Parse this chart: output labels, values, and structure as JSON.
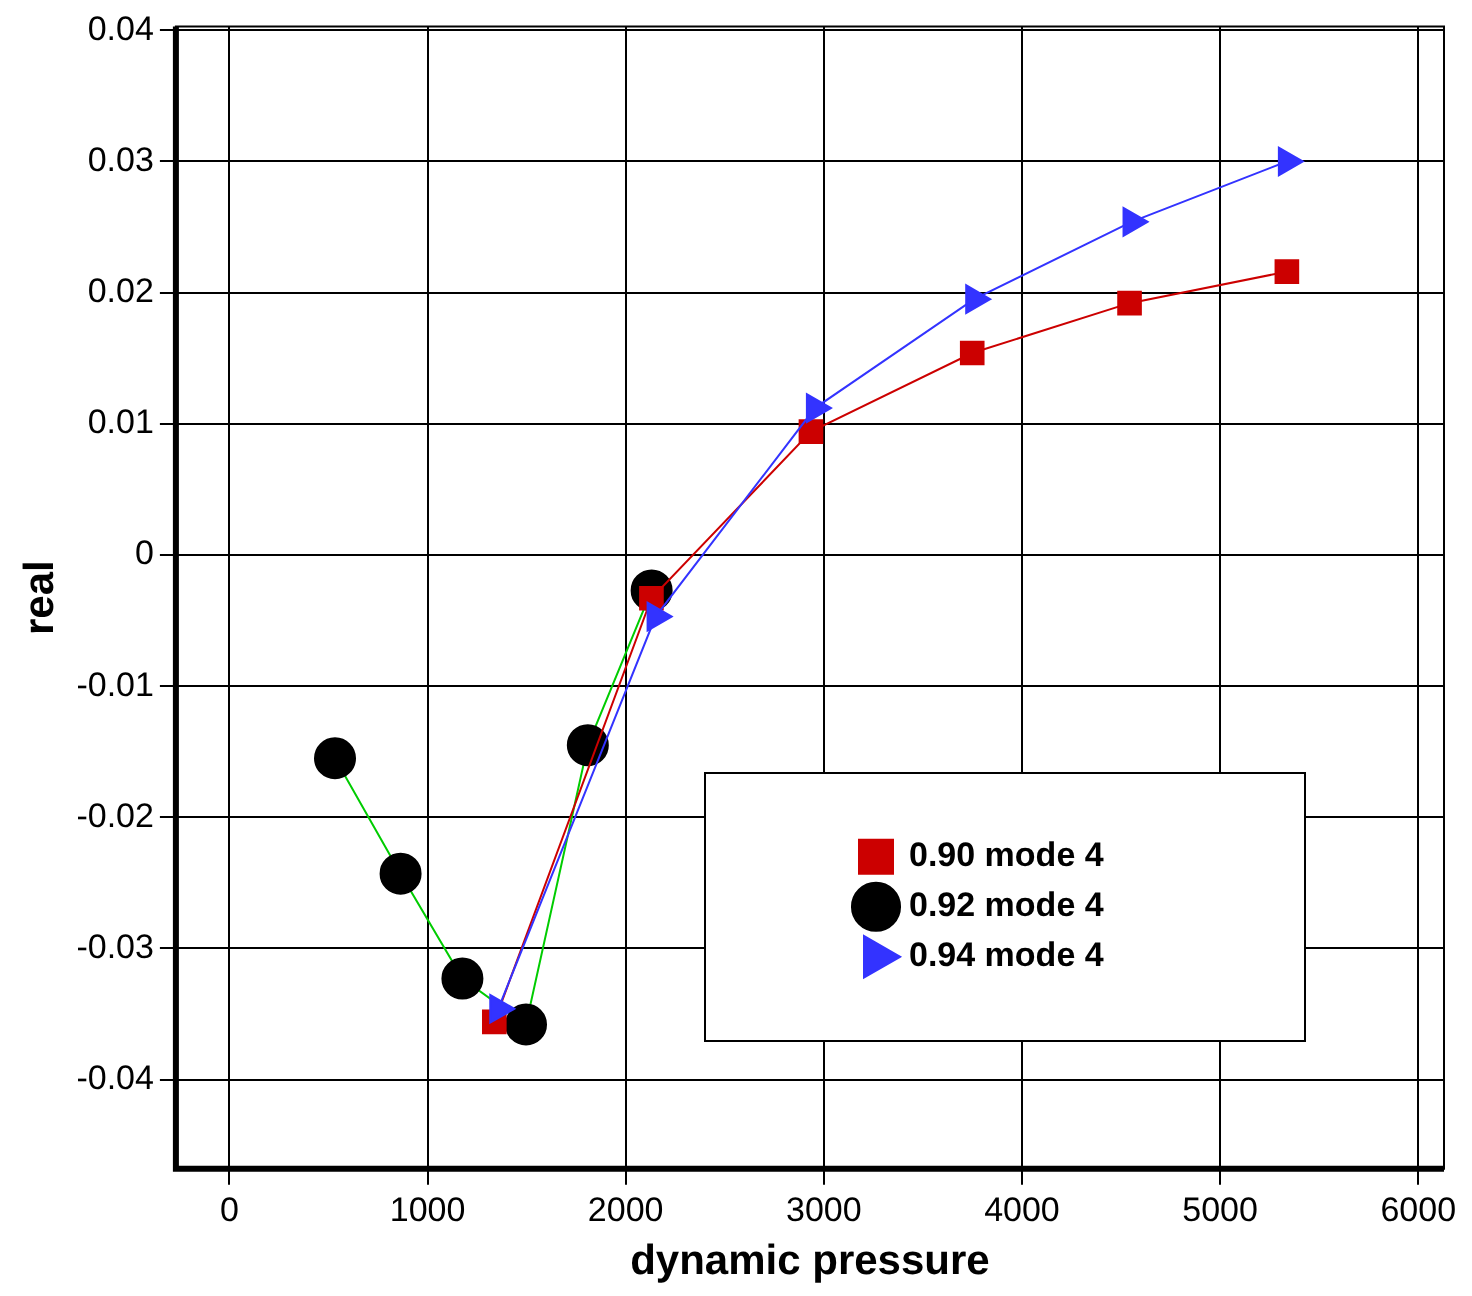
{
  "chart_data": {
    "type": "line",
    "xlabel": "dynamic pressure",
    "ylabel": "real",
    "xlim": [
      -270,
      6130
    ],
    "xticks": [
      0,
      1000,
      2000,
      3000,
      4000,
      5000,
      6000
    ],
    "ylim": [
      -0.0468,
      0.0403
    ],
    "yticks": [
      -0.04,
      -0.03,
      -0.02,
      -0.01,
      0,
      0.01,
      0.02,
      0.03,
      0.04
    ],
    "grid": true,
    "legend": "bottom right",
    "series": [
      {
        "name": "0.90 mode 4",
        "color": "#cc0000",
        "marker": "square",
        "x": [
          1337,
          2130,
          2935,
          3749,
          4543,
          5337
        ],
        "values": [
          -0.0356,
          -0.0033,
          0.0094,
          0.0154,
          0.0192,
          0.0216
        ]
      },
      {
        "name": "0.92 mode 4",
        "color": "#00cc00",
        "marker": "circle",
        "x": [
          533,
          864,
          1176,
          1497,
          1809,
          2131
        ],
        "values": [
          -0.0155,
          -0.0243,
          -0.0323,
          -0.0358,
          -0.0145,
          -0.0027
        ]
      },
      {
        "name": "0.94 mode 4",
        "color": "#3333ff",
        "marker": "triangle",
        "x": [
          1357,
          2151,
          2955,
          3759,
          4553,
          5337
        ],
        "values": [
          -0.0346,
          -0.0047,
          0.0112,
          0.0195,
          0.0254,
          0.03
        ]
      }
    ]
  }
}
